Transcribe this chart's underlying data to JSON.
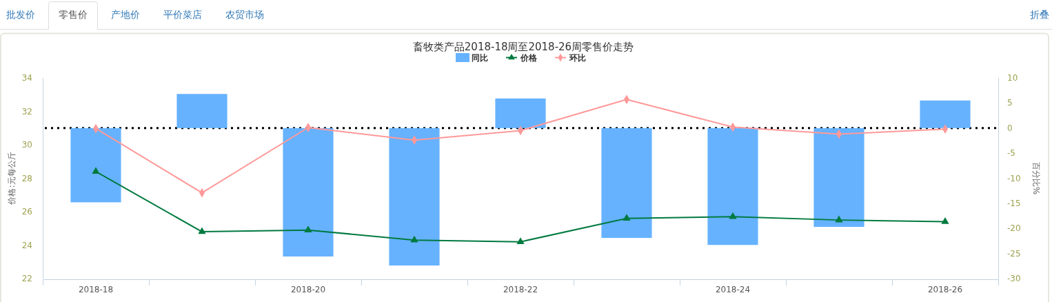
{
  "chart_data": {
    "type": "bar",
    "title": "畜牧类产品2018-18周至2018-26周零售价走势",
    "categories": [
      "2018-18",
      null,
      "2018-20",
      null,
      "2018-22",
      null,
      "2018-24",
      null,
      "2018-26"
    ],
    "series": [
      {
        "name": "同比",
        "axis": "y2",
        "color": "#66b2ff",
        "values": [
          -14.8,
          6.8,
          -25.6,
          -27.4,
          5.9,
          -21.9,
          -23.3,
          -19.7,
          5.5
        ]
      },
      {
        "name": "价格",
        "type": "line",
        "color": "#007a3f",
        "marker": "triangle",
        "values": [
          28.4,
          24.8,
          24.9,
          24.3,
          24.2,
          25.6,
          25.7,
          25.5,
          25.4
        ]
      },
      {
        "name": "环比",
        "type": "line",
        "axis": "y2",
        "color": "#ff9999",
        "marker": "diamond",
        "values": [
          -0.1,
          -12.9,
          0.1,
          -2.4,
          -0.5,
          5.7,
          0.2,
          -1.2,
          -0.2
        ]
      }
    ],
    "ylabel": "价格:元每公斤",
    "y2label": "百分比%",
    "ylim": [
      22,
      34
    ],
    "yticks": [
      22,
      24,
      26,
      28,
      30,
      32,
      34
    ],
    "y2lim": [
      -30,
      10
    ],
    "y2ticks": [
      -30,
      -25,
      -20,
      -15,
      -10,
      -5,
      0,
      5,
      10
    ],
    "ref_lines": [
      {
        "axis": "y2",
        "value": 0,
        "color": "#000000",
        "line_style": "dotted"
      }
    ],
    "legend": "top",
    "annotations": [
      "批发价",
      "零售价",
      "产地价",
      "平价菜店",
      "农贸市场",
      "折叠"
    ]
  }
}
